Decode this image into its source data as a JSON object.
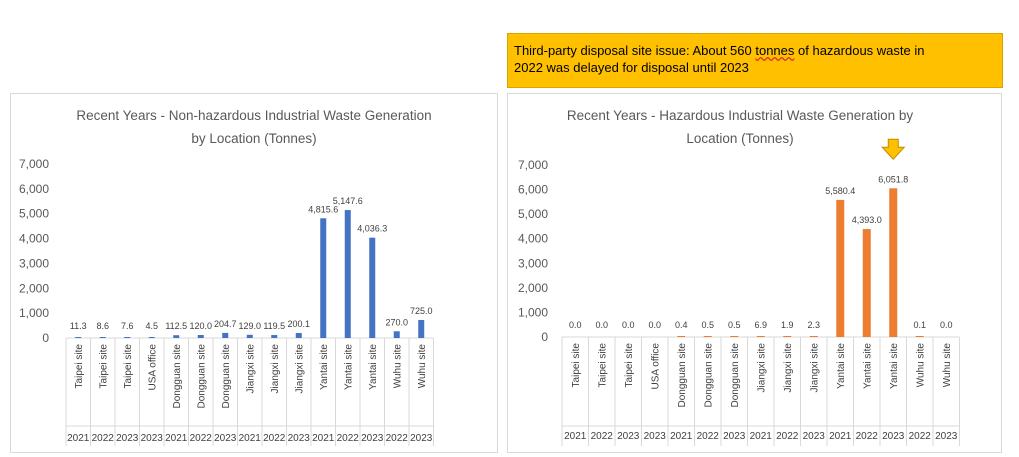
{
  "callout": {
    "line1_prefix": "Third-party disposal site issue: About 560 ",
    "line1_underlined": "tonnes",
    "line1_suffix": " of hazardous waste in",
    "line2": "2022 was delayed for disposal until 2023"
  },
  "chart_data": [
    {
      "type": "bar",
      "title": "Recent Years - Non-hazardous Industrial Waste Generation by Location (Tonnes)",
      "title_lines": [
        "Recent Years - Non-hazardous Industrial Waste Generation",
        "by Location (Tonnes)"
      ],
      "categories": [
        "Taipei site",
        "Taipei site",
        "Taipei site",
        "USA office",
        "Dongguan site",
        "Dongguan site",
        "Dongguan site",
        "Jiangxi site",
        "Jiangxi site",
        "Jiangxi site",
        "Yantai site",
        "Yantai site",
        "Yantai site",
        "Wuhu site",
        "Wuhu site"
      ],
      "years": [
        "2021",
        "2022",
        "2023",
        "2023",
        "2021",
        "2022",
        "2023",
        "2021",
        "2022",
        "2023",
        "2021",
        "2022",
        "2023",
        "2022",
        "2023"
      ],
      "values": [
        11.3,
        8.6,
        7.6,
        4.5,
        112.5,
        120.0,
        204.7,
        129.0,
        119.5,
        200.1,
        4815.6,
        5147.6,
        4036.3,
        270.0,
        725.0
      ],
      "value_labels": [
        "11.3",
        "8.6",
        "7.6",
        "4.5",
        "112.5",
        "120.0",
        "204.7",
        "129.0",
        "119.5",
        "200.1",
        "4,815.6",
        "5,147.6",
        "4,036.3",
        "270.0",
        "725.0"
      ],
      "yticks": [
        "0",
        "1,000",
        "2,000",
        "3,000",
        "4,000",
        "5,000",
        "6,000",
        "7,000"
      ],
      "ylim": [
        0,
        7000
      ],
      "color": "#4472c4",
      "grid": false
    },
    {
      "type": "bar",
      "title": "Recent Years - Hazardous Industrial Waste Generation by Location (Tonnes)",
      "title_lines": [
        "Recent Years - Hazardous Industrial Waste Generation by",
        "Location (Tonnes)"
      ],
      "categories": [
        "Taipei site",
        "Taipei site",
        "Taipei site",
        "USA office",
        "Dongguan site",
        "Dongguan site",
        "Dongguan site",
        "Jiangxi site",
        "Jiangxi site",
        "Jiangxi site",
        "Yantai site",
        "Yantai site",
        "Yantai site",
        "Wuhu site",
        "Wuhu site"
      ],
      "years": [
        "2021",
        "2022",
        "2023",
        "2023",
        "2021",
        "2022",
        "2023",
        "2021",
        "2022",
        "2023",
        "2021",
        "2022",
        "2023",
        "2022",
        "2023"
      ],
      "values": [
        0.0,
        0.0,
        0.0,
        0.0,
        0.4,
        0.5,
        0.5,
        6.9,
        1.9,
        2.3,
        5580.4,
        4393.0,
        6051.8,
        0.1,
        0.0
      ],
      "value_labels": [
        "0.0",
        "0.0",
        "0.0",
        "0.0",
        "0.4",
        "0.5",
        "0.5",
        "6.9",
        "1.9",
        "2.3",
        "5,580.4",
        "4,393.0",
        "6,051.8",
        "0.1",
        "0.0"
      ],
      "yticks": [
        "0",
        "1,000",
        "2,000",
        "3,000",
        "4,000",
        "5,000",
        "6,000",
        "7,000"
      ],
      "ylim": [
        0,
        7000
      ],
      "color": "#ed7d31",
      "grid": false,
      "highlight_index": 12,
      "highlight_marker": "down-arrow-icon"
    }
  ]
}
